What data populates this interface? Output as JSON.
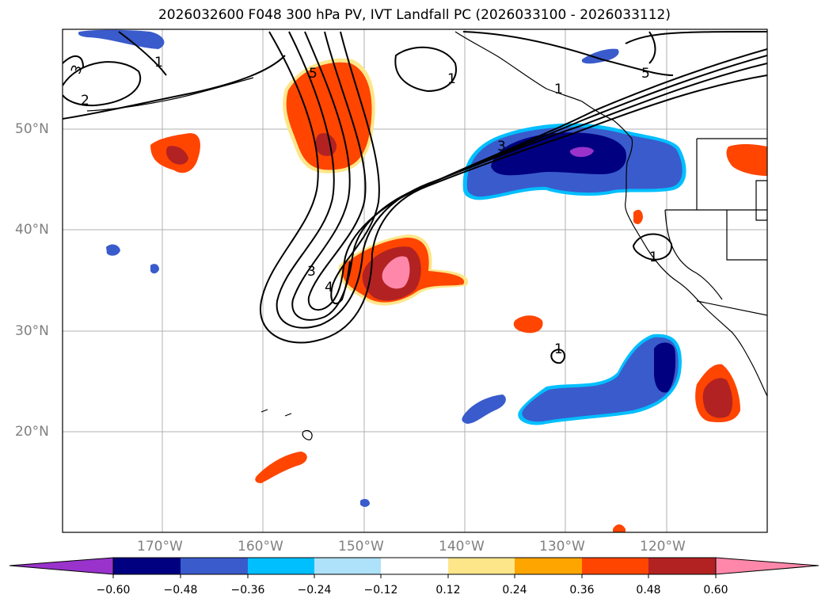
{
  "title": "2026032600 F048 300 hPa PV, IVT Landfall PC (2026033100 - 2026033112)",
  "lat_labels": [
    "50°N",
    "40°N",
    "30°N",
    "20°N"
  ],
  "lon_labels": [
    "170°W",
    "160°W",
    "150°W",
    "140°W",
    "130°W",
    "120°W"
  ],
  "colorbar": {
    "ticks": [
      "−0.60",
      "−0.48",
      "−0.36",
      "−0.24",
      "−0.12",
      "0.12",
      "0.24",
      "0.36",
      "0.48",
      "0.60"
    ],
    "colors": [
      "#9933cc",
      "#000080",
      "#3a5bcc",
      "#00bfff",
      "#aee2fa",
      "#ffffff",
      "#fde68a",
      "#ffa500",
      "#ff4500",
      "#b22222",
      "#ff88aa"
    ]
  },
  "contour_labels": [
    "3",
    "2",
    "1",
    "5",
    "1",
    "1",
    "5",
    "3",
    "4",
    "1",
    "1",
    "3"
  ]
}
